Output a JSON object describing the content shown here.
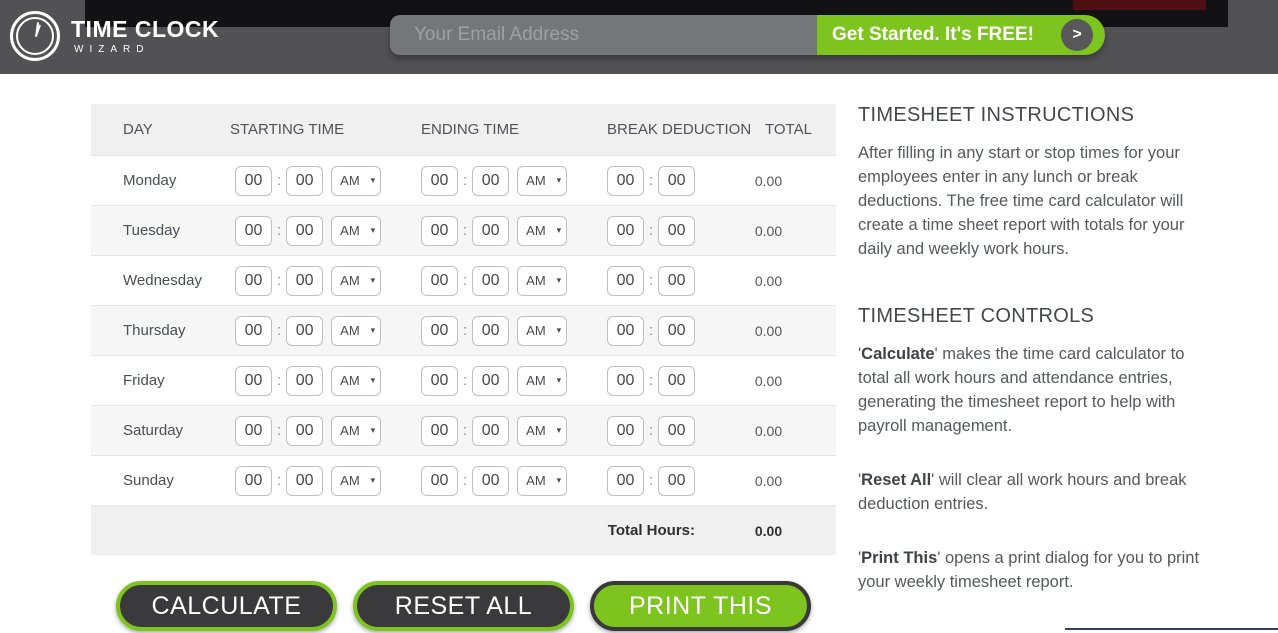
{
  "header": {
    "logo_line1": "TIME CLOCK",
    "logo_line2": "WIZARD",
    "email_placeholder": "Your Email Address",
    "cta_label": "Get Started. It's FREE!",
    "cta_arrow": ">"
  },
  "table": {
    "columns": [
      "DAY",
      "STARTING TIME",
      "ENDING TIME",
      "BREAK DEDUCTION",
      "TOTAL"
    ],
    "rows": [
      {
        "day": "Monday",
        "start_hh": "00",
        "start_mm": "00",
        "start_period": "AM",
        "end_hh": "00",
        "end_mm": "00",
        "end_period": "AM",
        "break_hh": "00",
        "break_mm": "00",
        "total": "0.00"
      },
      {
        "day": "Tuesday",
        "start_hh": "00",
        "start_mm": "00",
        "start_period": "AM",
        "end_hh": "00",
        "end_mm": "00",
        "end_period": "AM",
        "break_hh": "00",
        "break_mm": "00",
        "total": "0.00"
      },
      {
        "day": "Wednesday",
        "start_hh": "00",
        "start_mm": "00",
        "start_period": "AM",
        "end_hh": "00",
        "end_mm": "00",
        "end_period": "AM",
        "break_hh": "00",
        "break_mm": "00",
        "total": "0.00"
      },
      {
        "day": "Thursday",
        "start_hh": "00",
        "start_mm": "00",
        "start_period": "AM",
        "end_hh": "00",
        "end_mm": "00",
        "end_period": "AM",
        "break_hh": "00",
        "break_mm": "00",
        "total": "0.00"
      },
      {
        "day": "Friday",
        "start_hh": "00",
        "start_mm": "00",
        "start_period": "AM",
        "end_hh": "00",
        "end_mm": "00",
        "end_period": "AM",
        "break_hh": "00",
        "break_mm": "00",
        "total": "0.00"
      },
      {
        "day": "Saturday",
        "start_hh": "00",
        "start_mm": "00",
        "start_period": "AM",
        "end_hh": "00",
        "end_mm": "00",
        "end_period": "AM",
        "break_hh": "00",
        "break_mm": "00",
        "total": "0.00"
      },
      {
        "day": "Sunday",
        "start_hh": "00",
        "start_mm": "00",
        "start_period": "AM",
        "end_hh": "00",
        "end_mm": "00",
        "end_period": "AM",
        "break_hh": "00",
        "break_mm": "00",
        "total": "0.00"
      }
    ],
    "footer_label": "Total Hours:",
    "footer_value": "0.00"
  },
  "actions": {
    "calculate": "CALCULATE",
    "reset": "RESET ALL",
    "print": "PRINT THIS"
  },
  "instructions": {
    "heading": "TIMESHEET INSTRUCTIONS",
    "body": "After filling in any start or stop times for your employees enter in any lunch or break deductions. The free time card calculator will create a time sheet report with totals for your daily and weekly work hours."
  },
  "controls": {
    "heading": "TIMESHEET CONTROLS",
    "items": [
      {
        "pre": "'",
        "term": "Calculate",
        "post": "' makes the time card calculator to total all work hours and attendance entries, generating the timesheet report to help with payroll management."
      },
      {
        "pre": "'",
        "term": "Reset All",
        "post": "' will clear all work hours and break deduction entries."
      },
      {
        "pre": "'",
        "term": "Print This",
        "post": "' opens a print dialog for you to print your weekly timesheet report."
      }
    ]
  },
  "colors": {
    "brand_green": "#7dc41f",
    "header_gray": "#525254",
    "alert_red": "#4e1013",
    "divider_navy": "#30425f"
  }
}
